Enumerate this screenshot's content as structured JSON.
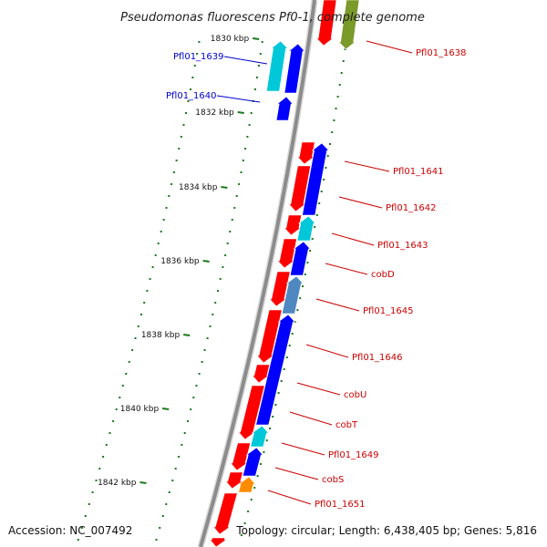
{
  "title": "Pseudomonas fluorescens Pf0-1, complete genome",
  "accession": "Accession: NC_007492",
  "topology": "Topology: circular; Length: 6,438,405 bp; Genes: 5,816",
  "colors": {
    "forward_gene": "#ff0000",
    "reverse_gene": "#0000ff",
    "backbone": "#8c8c8c",
    "tick": "#1a7a1a",
    "label_forward": "#cc0000",
    "label_reverse": "#0000cc",
    "cyan_gene": "#00c8d8",
    "steel_gene": "#4f88c0",
    "orange_gene": "#ff8c00",
    "olive_gene": "#7a9a2a"
  },
  "ticks": [
    {
      "label": "1830 kbp"
    },
    {
      "label": "1832 kbp"
    },
    {
      "label": "1834 kbp"
    },
    {
      "label": "1836 kbp"
    },
    {
      "label": "1838 kbp"
    },
    {
      "label": "1840 kbp"
    },
    {
      "label": "1842 kbp"
    }
  ],
  "gene_labels": [
    {
      "text": "Pfl01_1638",
      "strand": "forward"
    },
    {
      "text": "Pfl01_1639",
      "strand": "reverse"
    },
    {
      "text": "Pfl01_1640",
      "strand": "reverse"
    },
    {
      "text": "Pfl01_1641",
      "strand": "forward"
    },
    {
      "text": "Pfl01_1642",
      "strand": "forward"
    },
    {
      "text": "Pfl01_1643",
      "strand": "forward"
    },
    {
      "text": "cobD",
      "strand": "forward"
    },
    {
      "text": "Pfl01_1645",
      "strand": "forward"
    },
    {
      "text": "Pfl01_1646",
      "strand": "forward"
    },
    {
      "text": "cobU",
      "strand": "forward"
    },
    {
      "text": "cobT",
      "strand": "forward"
    },
    {
      "text": "Pfl01_1649",
      "strand": "forward"
    },
    {
      "text": "cobS",
      "strand": "forward"
    },
    {
      "text": "Pfl01_1651",
      "strand": "forward"
    }
  ]
}
